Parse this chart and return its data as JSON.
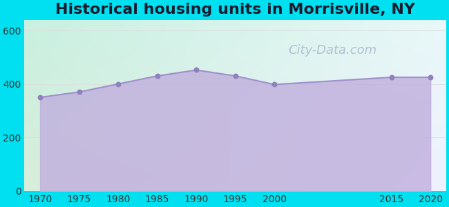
{
  "title": "Historical housing units in Morrisville, NY",
  "title_fontsize": 16,
  "title_color": "#1a1a2e",
  "years": [
    1970,
    1975,
    1980,
    1985,
    1990,
    1995,
    2000,
    2015,
    2020
  ],
  "values": [
    350,
    370,
    400,
    430,
    452,
    430,
    398,
    425,
    425
  ],
  "fill_color": "#c0aedd",
  "fill_alpha": 0.8,
  "line_color": "#a090cc",
  "marker_color": "#9080bb",
  "marker_size": 22,
  "bg_outer": "#00e0f0",
  "bg_tl": "#c8f0e0",
  "bg_tr": "#e8f8f8",
  "bg_bl": "#d8eeda",
  "bg_br": "#f0f0ff",
  "ylim": [
    0,
    640
  ],
  "yticks": [
    0,
    200,
    400,
    600
  ],
  "xticks": [
    1970,
    1975,
    1980,
    1985,
    1990,
    1995,
    2000,
    2015,
    2020
  ],
  "tick_fontsize": 10,
  "watermark": "City-Data.com",
  "watermark_color": "#a8b8cc",
  "watermark_fontsize": 13,
  "grid_color": "#dddddd",
  "xmin": 1968,
  "xmax": 2022
}
